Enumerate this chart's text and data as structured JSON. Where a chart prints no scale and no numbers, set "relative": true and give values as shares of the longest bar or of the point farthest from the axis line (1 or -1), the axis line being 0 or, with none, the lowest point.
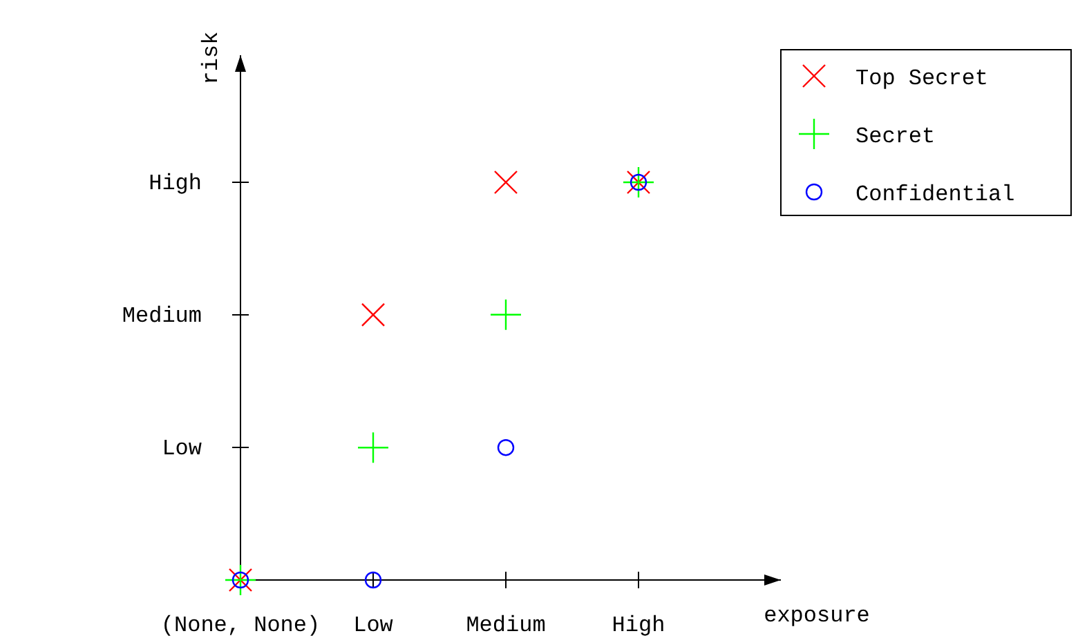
{
  "chart_data": {
    "type": "scatter",
    "xlabel": "exposure",
    "ylabel": "risk",
    "relative": true,
    "categories": [
      "(None, None)",
      "Low",
      "Medium",
      "High"
    ],
    "annotations": [
      "High",
      "Medium",
      "Low"
    ],
    "series": [
      {
        "name": "Top Secret",
        "color": "#ff0000",
        "marker": "x",
        "values": [
          0,
          0.667,
          1,
          1
        ]
      },
      {
        "name": "Secret",
        "color": "#00ff00",
        "marker": "cross",
        "values": [
          0,
          0.333,
          0.667,
          1
        ]
      },
      {
        "name": "Confidential",
        "color": "#0000ff",
        "marker": "circle",
        "values": [
          0,
          0,
          0.333,
          1
        ]
      }
    ],
    "grid": false,
    "legend": "top right"
  }
}
